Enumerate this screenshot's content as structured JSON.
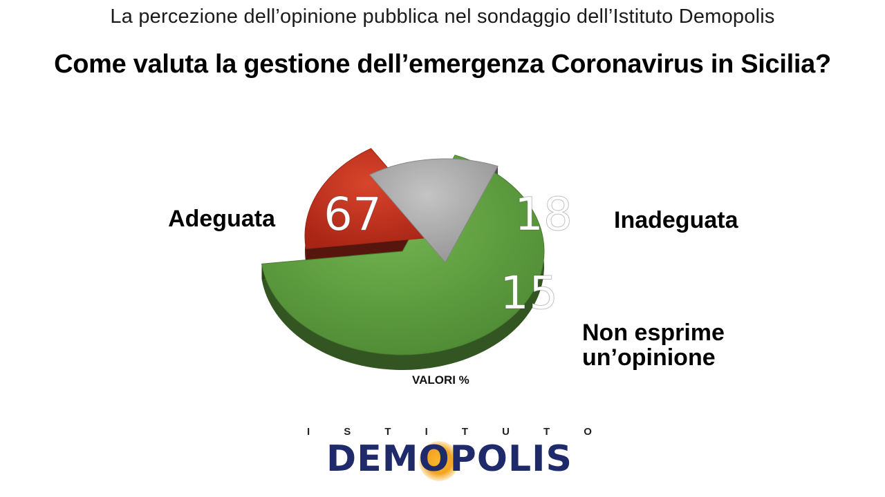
{
  "header": {
    "subtitle": "La percezione dell’opinione pubblica nel sondaggio dell’Istituto Demopolis",
    "title": "Come valuta la gestione dell’emergenza Coronavirus in Sicilia?"
  },
  "chart_data": {
    "type": "pie",
    "unit_note": "VALORI %",
    "slices": [
      {
        "label": "Adeguata",
        "value": 67,
        "color": "#5a9a3c"
      },
      {
        "label": "Inadeguata",
        "value": 18,
        "color": "#c0301c"
      },
      {
        "label": "Non esprime un’opinione",
        "label_lines": [
          "Non esprime",
          "un’opinione"
        ],
        "value": 15,
        "color": "#a9a9a9"
      }
    ]
  },
  "logo": {
    "top_letters": [
      "I",
      "S",
      "T",
      "I",
      "T",
      "U",
      "T",
      "O"
    ],
    "main": "DEMOPOLIS"
  }
}
